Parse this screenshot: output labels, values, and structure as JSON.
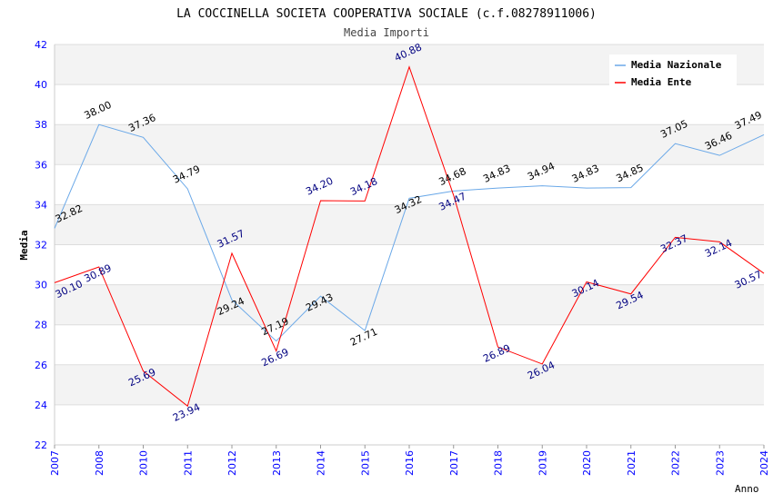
{
  "chart_data": {
    "type": "line",
    "title": "LA COCCINELLA SOCIETA COOPERATIVA SOCIALE (c.f.08278911006)",
    "subtitle": "Media Importi",
    "xlabel": "Anno",
    "ylabel": "Media",
    "ylim": [
      22,
      42
    ],
    "yticks": [
      "22",
      "24",
      "26",
      "28",
      "30",
      "32",
      "34",
      "36",
      "38",
      "40",
      "42"
    ],
    "categories": [
      "2007",
      "2008",
      "2010",
      "2011",
      "2012",
      "2013",
      "2014",
      "2015",
      "2016",
      "2017",
      "2018",
      "2019",
      "2020",
      "2021",
      "2022",
      "2023",
      "2024"
    ],
    "grid": true,
    "legend_position": "top-right",
    "series": [
      {
        "name": "Media Nazionale",
        "color": "#6aa8e8",
        "label_color": "#000000",
        "values": [
          32.82,
          38.0,
          37.36,
          34.79,
          29.24,
          27.19,
          29.43,
          27.71,
          34.32,
          34.68,
          34.83,
          34.94,
          34.83,
          34.85,
          37.05,
          36.46,
          37.49
        ]
      },
      {
        "name": "Media Ente",
        "color": "#ff0000",
        "label_color": "#000080",
        "values": [
          30.1,
          30.89,
          25.69,
          23.94,
          31.57,
          26.69,
          34.2,
          34.18,
          40.88,
          34.47,
          26.89,
          26.04,
          30.14,
          29.54,
          32.37,
          32.14,
          30.57
        ]
      }
    ]
  }
}
